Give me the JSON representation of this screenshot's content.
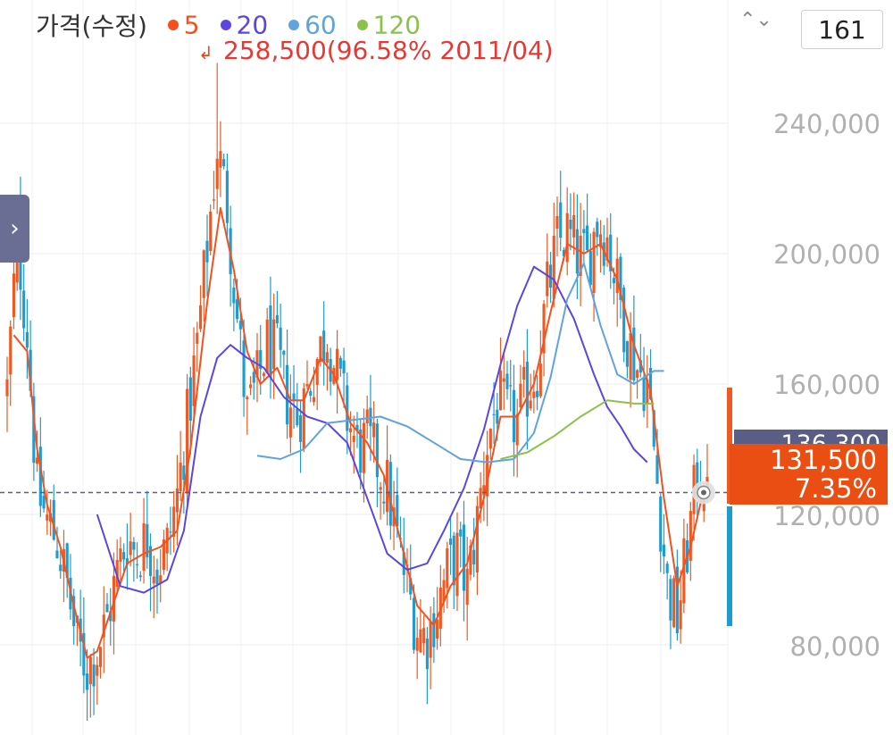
{
  "legend": {
    "title": "가격(수정)",
    "ma": [
      {
        "label": "5",
        "color": "#f4511e"
      },
      {
        "label": "20",
        "color": "#5c46e0"
      },
      {
        "label": "60",
        "color": "#5fa3e0"
      },
      {
        "label": "120",
        "color": "#8bc34a"
      }
    ]
  },
  "max_annotation": "258,500(96.58% 2011/04)",
  "arrow_glyph": "↲",
  "nav_chevron": "›",
  "updown_glyph": "⌃⌄",
  "visible_count": "161",
  "y_axis": {
    "ticks": [
      "240,000",
      "200,000",
      "160,000",
      "120,000",
      "80,000"
    ]
  },
  "reference_price": "136,300",
  "current": {
    "price": "131,500",
    "change": "7.35%"
  },
  "colors": {
    "up": "#ee5a24",
    "down": "#1e9cd0",
    "reference_line": "#5a5e86"
  },
  "chart_data": {
    "type": "candlestick",
    "y_axis_ticks": [
      80000,
      120000,
      160000,
      200000,
      240000
    ],
    "ylim": [
      59000,
      282000
    ],
    "max_marker": {
      "value": 258500,
      "pct_from_current": "96.58%",
      "date": "2011/04"
    },
    "reference_line_value": 136300,
    "last_price": 131500,
    "last_change_pct": 7.35,
    "close_path": [
      [
        0,
        158000
      ],
      [
        3,
        205000
      ],
      [
        6,
        176000
      ],
      [
        9,
        127000
      ],
      [
        12,
        118000
      ],
      [
        15,
        112000
      ],
      [
        18,
        98000
      ],
      [
        21,
        80000
      ],
      [
        24,
        73000
      ],
      [
        27,
        78000
      ],
      [
        30,
        88000
      ],
      [
        33,
        102000
      ],
      [
        36,
        113000
      ],
      [
        39,
        108000
      ],
      [
        42,
        113000
      ],
      [
        45,
        104000
      ],
      [
        48,
        110000
      ],
      [
        51,
        126000
      ],
      [
        54,
        148000
      ],
      [
        57,
        172000
      ],
      [
        60,
        202000
      ],
      [
        63,
        233000
      ],
      [
        66,
        215000
      ],
      [
        69,
        180000
      ],
      [
        72,
        150000
      ],
      [
        75,
        160000
      ],
      [
        78,
        172000
      ],
      [
        81,
        168000
      ],
      [
        84,
        156000
      ],
      [
        87,
        150000
      ],
      [
        90,
        158000
      ],
      [
        93,
        168000
      ],
      [
        96,
        176000
      ],
      [
        99,
        162000
      ],
      [
        102,
        150000
      ],
      [
        105,
        140000
      ],
      [
        108,
        142000
      ],
      [
        111,
        136000
      ],
      [
        114,
        128000
      ],
      [
        117,
        112000
      ],
      [
        120,
        98000
      ],
      [
        123,
        85000
      ],
      [
        126,
        82000
      ],
      [
        129,
        92000
      ],
      [
        132,
        102000
      ],
      [
        135,
        108000
      ],
      [
        138,
        98000
      ],
      [
        141,
        118000
      ],
      [
        144,
        142000
      ],
      [
        147,
        155000
      ],
      [
        150,
        150000
      ],
      [
        153,
        148000
      ],
      [
        156,
        158000
      ],
      [
        159,
        165000
      ],
      [
        162,
        188000
      ],
      [
        165,
        203000
      ],
      [
        168,
        206000
      ],
      [
        171,
        200000
      ],
      [
        174,
        197000
      ],
      [
        177,
        210000
      ],
      [
        180,
        205000
      ],
      [
        183,
        190000
      ],
      [
        186,
        175000
      ],
      [
        189,
        165000
      ],
      [
        192,
        160000
      ],
      [
        195,
        130000
      ],
      [
        198,
        98000
      ],
      [
        201,
        88000
      ],
      [
        204,
        110000
      ],
      [
        207,
        132000
      ],
      [
        210,
        131500
      ]
    ],
    "series": [
      {
        "name": "5",
        "values": [
          [
            2,
            175000
          ],
          [
            6,
            170000
          ],
          [
            9,
            140000
          ],
          [
            12,
            123000
          ],
          [
            16,
            110000
          ],
          [
            20,
            92000
          ],
          [
            24,
            76000
          ],
          [
            27,
            78000
          ],
          [
            31,
            90000
          ],
          [
            36,
            105000
          ],
          [
            41,
            108000
          ],
          [
            46,
            110000
          ],
          [
            51,
            115000
          ],
          [
            55,
            140000
          ],
          [
            60,
            185000
          ],
          [
            64,
            214000
          ],
          [
            68,
            195000
          ],
          [
            72,
            170000
          ],
          [
            76,
            160000
          ],
          [
            81,
            165000
          ],
          [
            85,
            155000
          ],
          [
            89,
            155000
          ],
          [
            94,
            168000
          ],
          [
            98,
            163000
          ],
          [
            103,
            148000
          ],
          [
            108,
            142000
          ],
          [
            113,
            132000
          ],
          [
            118,
            112000
          ],
          [
            123,
            92000
          ],
          [
            128,
            86000
          ],
          [
            133,
            98000
          ],
          [
            138,
            105000
          ],
          [
            143,
            125000
          ],
          [
            148,
            150000
          ],
          [
            153,
            150000
          ],
          [
            158,
            160000
          ],
          [
            163,
            182000
          ],
          [
            168,
            203000
          ],
          [
            173,
            200000
          ],
          [
            178,
            203000
          ],
          [
            183,
            192000
          ],
          [
            188,
            172000
          ],
          [
            193,
            158000
          ],
          [
            197,
            125000
          ],
          [
            201,
            98000
          ],
          [
            205,
            110000
          ],
          [
            209,
            128000
          ]
        ]
      },
      {
        "name": "20",
        "values": [
          [
            27,
            120000
          ],
          [
            34,
            98000
          ],
          [
            41,
            96000
          ],
          [
            48,
            100000
          ],
          [
            53,
            115000
          ],
          [
            58,
            150000
          ],
          [
            63,
            168000
          ],
          [
            67,
            172000
          ],
          [
            72,
            168000
          ],
          [
            77,
            165000
          ],
          [
            83,
            156000
          ],
          [
            90,
            150000
          ],
          [
            96,
            148000
          ],
          [
            102,
            142000
          ],
          [
            108,
            125000
          ],
          [
            114,
            108000
          ],
          [
            120,
            103000
          ],
          [
            126,
            105000
          ],
          [
            131,
            115000
          ],
          [
            137,
            128000
          ],
          [
            143,
            146000
          ],
          [
            148,
            166000
          ],
          [
            153,
            184000
          ],
          [
            158,
            196000
          ],
          [
            164,
            192000
          ],
          [
            170,
            180000
          ],
          [
            176,
            163000
          ],
          [
            180,
            153000
          ],
          [
            184,
            147000
          ],
          [
            188,
            140000
          ],
          [
            192,
            136000
          ]
        ]
      },
      {
        "name": "60",
        "values": [
          [
            75,
            138000
          ],
          [
            82,
            137000
          ],
          [
            89,
            140000
          ],
          [
            96,
            148000
          ],
          [
            104,
            149000
          ],
          [
            112,
            150000
          ],
          [
            120,
            147000
          ],
          [
            128,
            142000
          ],
          [
            136,
            137000
          ],
          [
            144,
            136000
          ],
          [
            152,
            137000
          ],
          [
            158,
            145000
          ],
          [
            163,
            162000
          ],
          [
            168,
            186000
          ],
          [
            173,
            197000
          ],
          [
            178,
            178000
          ],
          [
            183,
            163000
          ],
          [
            188,
            160000
          ],
          [
            194,
            164000
          ],
          [
            197,
            164000
          ]
        ]
      },
      {
        "name": "120",
        "values": [
          [
            148,
            137000
          ],
          [
            156,
            139000
          ],
          [
            164,
            144000
          ],
          [
            172,
            150000
          ],
          [
            180,
            155000
          ],
          [
            188,
            154000
          ],
          [
            194,
            154000
          ]
        ]
      }
    ]
  }
}
